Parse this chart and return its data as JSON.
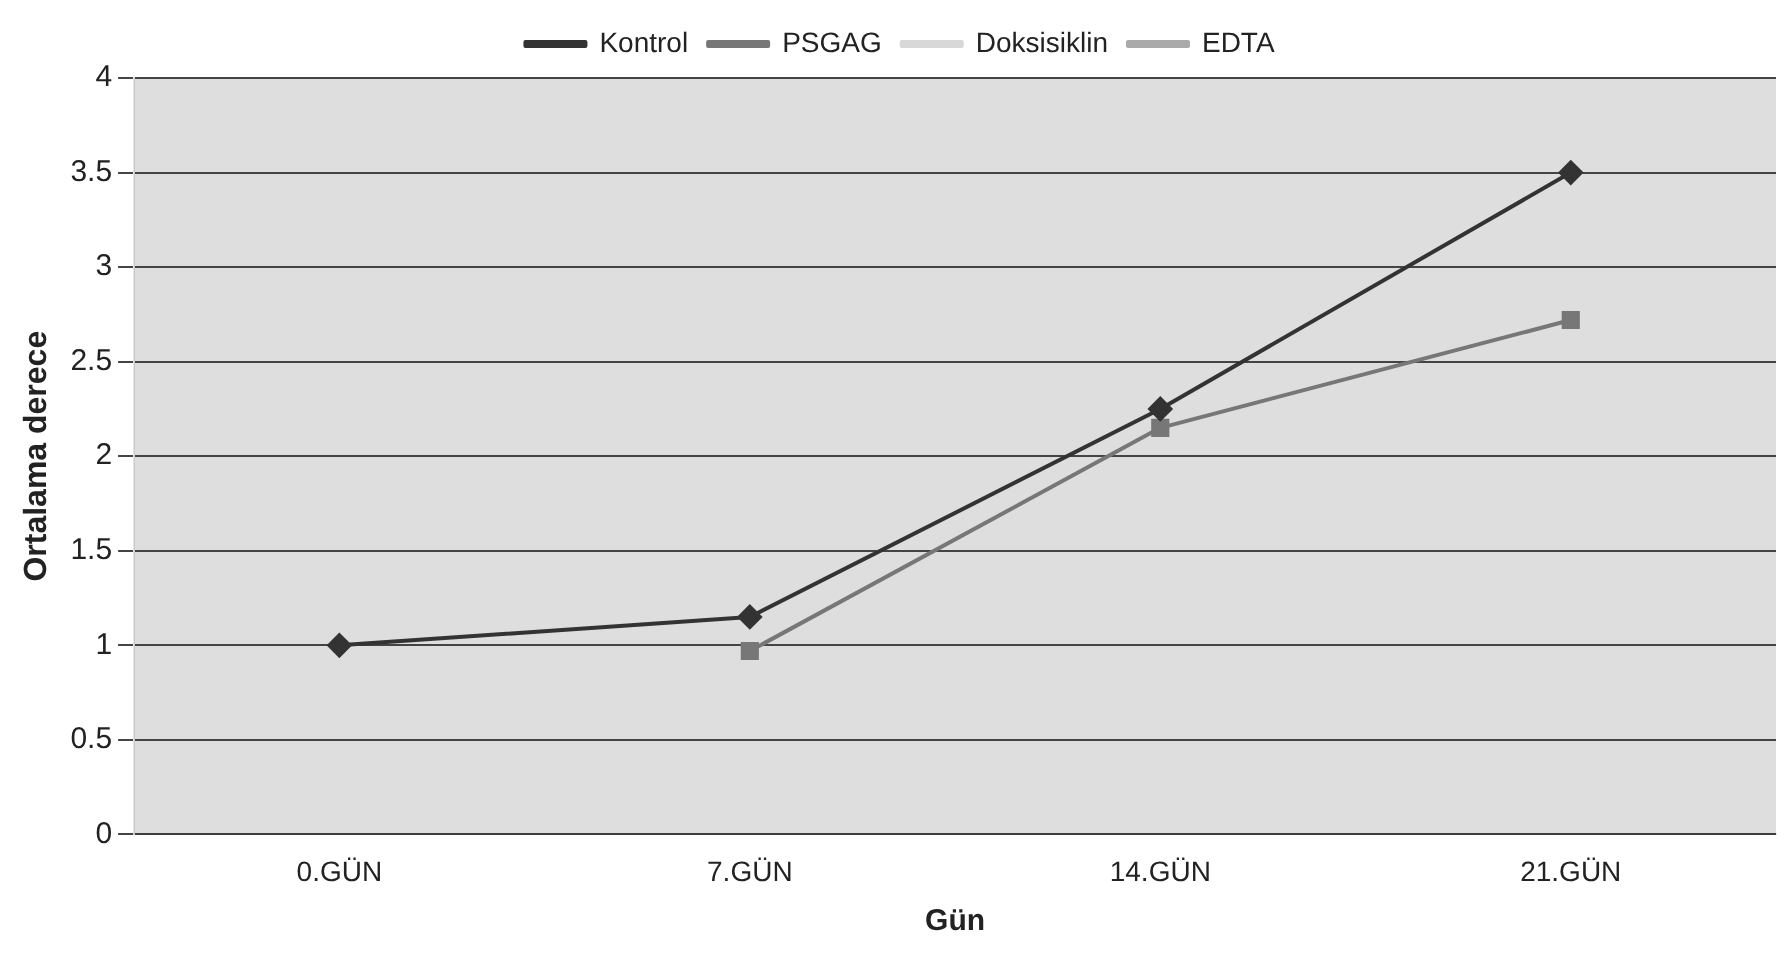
{
  "chart_data": {
    "type": "line",
    "xlabel": "Gün",
    "ylabel": "Ortalama derece",
    "categories": [
      "0.GÜN",
      "7.GÜN",
      "14.GÜN",
      "21.GÜN"
    ],
    "series": [
      {
        "name": "Kontrol",
        "color": "#333333",
        "marker": "diamond",
        "values": [
          1,
          1.15,
          2.25,
          3.5
        ]
      },
      {
        "name": "PSGAG",
        "color": "#777777",
        "marker": "square",
        "values": [
          null,
          0.97,
          2.15,
          2.72
        ]
      },
      {
        "name": "Doksisiklin",
        "color": "#d8d8d8",
        "marker": "none",
        "values": [
          null,
          null,
          null,
          null
        ]
      },
      {
        "name": "EDTA",
        "color": "#aaaaaa",
        "marker": "star",
        "values": [
          null,
          null,
          null,
          null
        ]
      }
    ],
    "ylim": [
      0,
      4
    ],
    "yticks": [
      0,
      0.5,
      1,
      1.5,
      2,
      2.5,
      3,
      3.5,
      4
    ],
    "grid": "y",
    "legend": "top"
  }
}
